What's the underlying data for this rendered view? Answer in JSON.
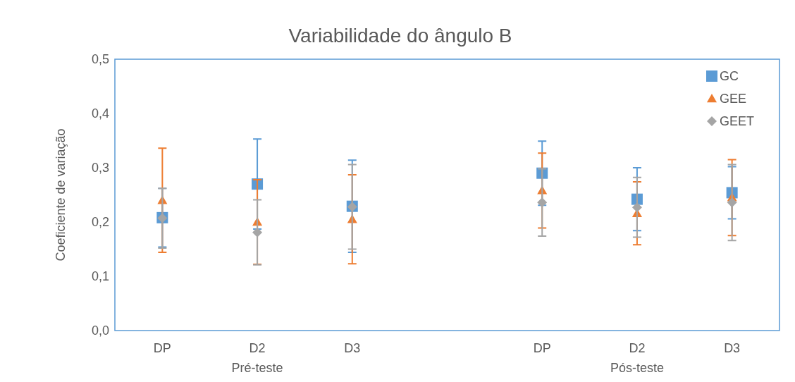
{
  "chart_data": {
    "type": "scatter",
    "title": "Variabilidade do ângulo B",
    "ylabel": "Coeficiente de variação",
    "categories": [
      "DP",
      "D2",
      "D3",
      null,
      "DP",
      "D2",
      "D3"
    ],
    "annotations": [
      "Pré-teste",
      "Pós-teste"
    ],
    "ylim": [
      0,
      0.5
    ],
    "yticks": [
      {
        "value": 0,
        "label": "0,0"
      },
      {
        "value": 0.1,
        "label": "0,1"
      },
      {
        "value": 0.2,
        "label": "0,2"
      },
      {
        "value": 0.3,
        "label": "0,3"
      },
      {
        "value": 0.4,
        "label": "0,4"
      },
      {
        "value": 0.5,
        "label": "0,5"
      }
    ],
    "grid": false,
    "legend": "top right",
    "series": [
      {
        "name": "GC",
        "color": "#5b9bd5",
        "marker": "square",
        "values": [
          0.208,
          0.27,
          0.229,
          null,
          0.29,
          0.242,
          0.254
        ],
        "errors": [
          0.054,
          0.083,
          0.085,
          null,
          0.059,
          0.058,
          0.048
        ]
      },
      {
        "name": "GEE",
        "color": "#ed7d31",
        "marker": "triangle",
        "values": [
          0.24,
          0.2,
          0.205,
          null,
          0.258,
          0.216,
          0.245
        ],
        "errors": [
          0.096,
          0.078,
          0.082,
          null,
          0.069,
          0.058,
          0.07
        ]
      },
      {
        "name": "GEET",
        "color": "#a5a5a5",
        "marker": "diamond",
        "values": [
          0.207,
          0.181,
          0.228,
          null,
          0.236,
          0.227,
          0.236
        ],
        "errors": [
          0.055,
          0.06,
          0.078,
          null,
          0.062,
          0.055,
          0.07
        ]
      }
    ]
  }
}
